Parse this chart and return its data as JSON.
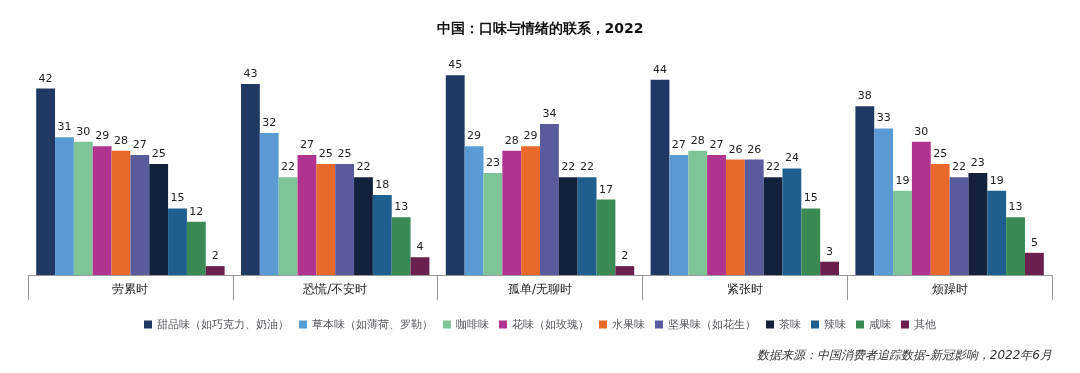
{
  "chart_data": {
    "type": "bar",
    "title": "中国：口味与情绪的联系，2022",
    "categories": [
      "劳累时",
      "恐慌/不安时",
      "孤单/无聊时",
      "紧张时",
      "烦躁时"
    ],
    "series": [
      {
        "name": "甜品味（如巧克力、奶油）",
        "color": "#1f3864",
        "values": [
          42,
          43,
          45,
          44,
          38
        ]
      },
      {
        "name": "草本味（如薄荷、罗勒）",
        "color": "#5b9bd5",
        "values": [
          31,
          32,
          29,
          27,
          33
        ]
      },
      {
        "name": "咖啡味",
        "color": "#7fc496",
        "values": [
          30,
          22,
          23,
          28,
          19
        ]
      },
      {
        "name": "花味（如玫瑰）",
        "color": "#b0348f",
        "values": [
          29,
          27,
          28,
          27,
          30
        ]
      },
      {
        "name": "水果味",
        "color": "#e8692a",
        "values": [
          28,
          25,
          29,
          26,
          25
        ]
      },
      {
        "name": "坚果味（如花生）",
        "color": "#5a5a9e",
        "values": [
          27,
          25,
          34,
          26,
          22
        ]
      },
      {
        "name": "茶味",
        "color": "#14213d",
        "values": [
          25,
          22,
          22,
          22,
          23
        ]
      },
      {
        "name": "辣味",
        "color": "#1f5f8f",
        "values": [
          15,
          18,
          22,
          24,
          19
        ]
      },
      {
        "name": "咸味",
        "color": "#3a8a55",
        "values": [
          12,
          13,
          17,
          15,
          13
        ]
      },
      {
        "name": "其他",
        "color": "#6b1f4f",
        "values": [
          2,
          4,
          2,
          3,
          5
        ]
      }
    ],
    "data_labels": true,
    "grid": false,
    "legend": "bottom",
    "annotations": [
      "数据来源：中国消费者追踪数据-新冠影响，2022年6月"
    ]
  }
}
